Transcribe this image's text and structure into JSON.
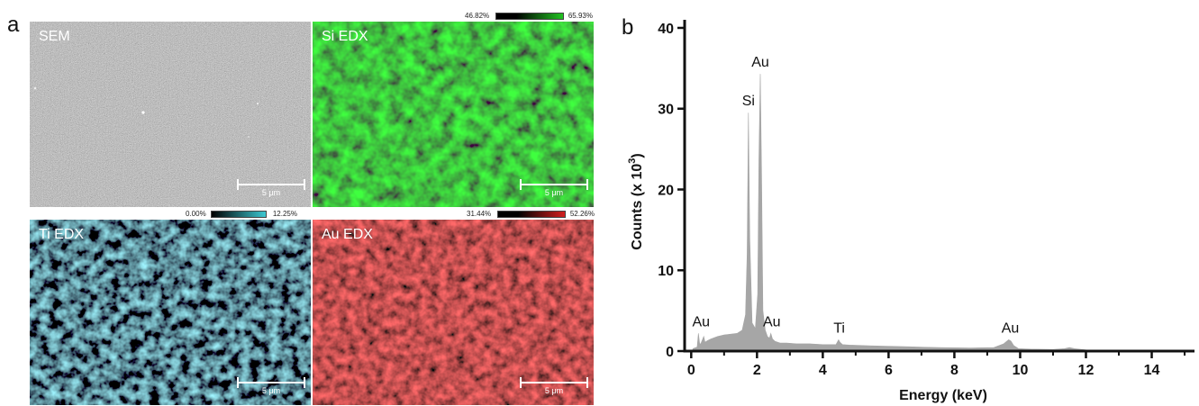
{
  "panel_a": {
    "letter": "a",
    "maps": [
      {
        "title": "SEM",
        "scalebar": "5 μm"
      },
      {
        "title": "Si EDX",
        "scalebar": "5 μm",
        "colorbar": {
          "min": "46.82%",
          "max": "65.93%",
          "color": "#22c322"
        }
      },
      {
        "title": "Ti EDX",
        "scalebar": "5 μm",
        "colorbar": {
          "min": "0.00%",
          "max": "12.25%",
          "color": "#3cc8d2"
        }
      },
      {
        "title": "Au EDX",
        "scalebar": "5 μm",
        "colorbar": {
          "min": "31.44%",
          "max": "52.26%",
          "color": "#d21e1e"
        }
      }
    ]
  },
  "chart_data": {
    "type": "area",
    "panel_label": "b",
    "xlabel": "Energy (keV)",
    "ylabel": "Counts (x 10",
    "ylabel_superscript": "3",
    "ylabel_suffix": ")",
    "xlim": [
      -0.2,
      15.3
    ],
    "ylim": [
      0,
      41
    ],
    "xticks": [
      "0",
      "2",
      "4",
      "6",
      "8",
      "10",
      "12",
      "14"
    ],
    "yticks": [
      "0",
      "10",
      "20",
      "30",
      "40"
    ],
    "fill_color": "#a6a6a6",
    "grid": false,
    "series": [
      {
        "x": [
          0.05,
          0.18,
          0.22,
          0.26,
          0.3,
          0.38,
          0.42,
          0.5,
          0.6,
          0.8,
          1.0,
          1.2,
          1.4,
          1.55,
          1.65,
          1.7,
          1.74,
          1.78,
          1.85,
          1.95,
          2.02,
          2.06,
          2.1,
          2.14,
          2.18,
          2.25,
          2.32,
          2.38,
          2.42,
          2.47,
          2.55,
          2.7,
          2.9,
          3.2,
          3.6,
          4.0,
          4.4,
          4.48,
          4.52,
          4.6,
          4.8,
          5.5,
          6.5,
          7.5,
          8.5,
          9.2,
          9.5,
          9.65,
          9.72,
          9.8,
          9.95,
          10.3,
          11.0,
          11.35,
          11.5,
          11.65,
          12.0,
          13.0,
          14.0,
          15.3
        ],
        "y": [
          0.3,
          0.5,
          2.2,
          0.8,
          1.0,
          1.8,
          1.1,
          1.3,
          1.5,
          1.8,
          2.0,
          2.1,
          2.2,
          2.6,
          4.5,
          12.0,
          29.5,
          14.0,
          3.5,
          2.8,
          7.0,
          24.0,
          34.3,
          22.0,
          5.0,
          2.6,
          1.8,
          1.6,
          2.2,
          1.5,
          1.2,
          1.0,
          1.0,
          0.9,
          0.9,
          0.8,
          0.8,
          1.4,
          1.1,
          0.8,
          0.75,
          0.65,
          0.55,
          0.45,
          0.38,
          0.45,
          0.9,
          1.4,
          1.25,
          0.7,
          0.3,
          0.25,
          0.2,
          0.3,
          0.45,
          0.3,
          0.15,
          0.1,
          0.05,
          0.02
        ]
      }
    ],
    "annotations": [
      {
        "text": "Au",
        "x": 2.1,
        "y": 34.3
      },
      {
        "text": "Si",
        "x": 1.74,
        "y": 29.5
      },
      {
        "text": "Au",
        "x": 0.3,
        "y": 2.2
      },
      {
        "text": "Au",
        "x": 2.45,
        "y": 2.2
      },
      {
        "text": "Ti",
        "x": 4.5,
        "y": 1.4
      },
      {
        "text": "Au",
        "x": 9.7,
        "y": 1.4
      }
    ]
  }
}
